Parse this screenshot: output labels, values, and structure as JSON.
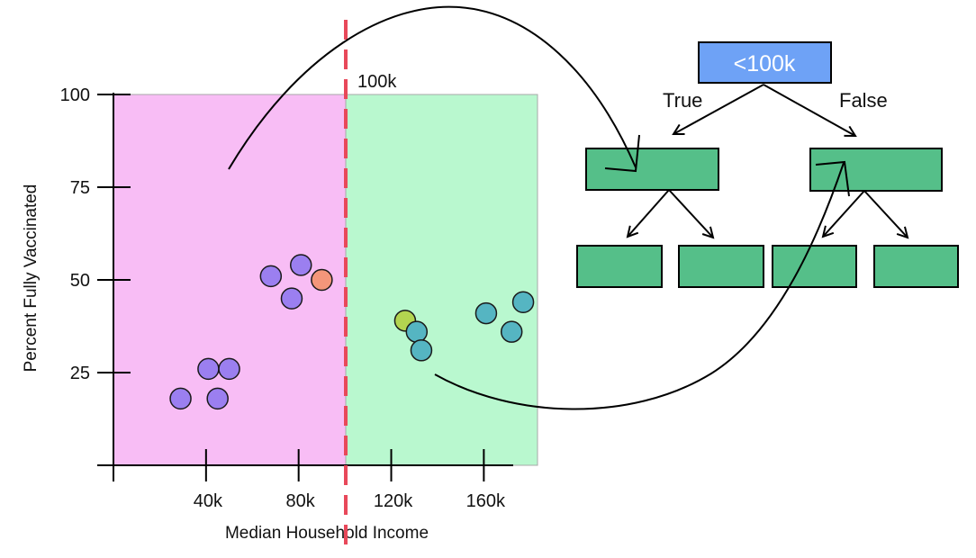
{
  "colors": {
    "left_region": "#f8bdf5",
    "right_region": "#b9f8cf",
    "split_line": "#e8485a",
    "root_node": "#6ea2f6",
    "tree_node": "#55bf89",
    "point_purple": "#9b7ff0",
    "point_orange": "#f4967a",
    "point_lime": "#b3d450",
    "point_teal": "#55b5c2"
  },
  "scatter": {
    "xlabel": "Median Household Income",
    "ylabel": "Percent Fully Vaccinated",
    "x_ticks": [
      {
        "value": 40000,
        "label": "40k"
      },
      {
        "value": 80000,
        "label": "80k"
      },
      {
        "value": 120000,
        "label": "120k"
      },
      {
        "value": 160000,
        "label": "160k"
      }
    ],
    "y_ticks": [
      {
        "value": 25,
        "label": "25"
      },
      {
        "value": 50,
        "label": "50"
      },
      {
        "value": 75,
        "label": "75"
      },
      {
        "value": 100,
        "label": "100"
      }
    ],
    "split": {
      "value": 100000,
      "label": "100k"
    },
    "points": [
      {
        "x": 29000,
        "y": 18,
        "color": "point_purple"
      },
      {
        "x": 45000,
        "y": 18,
        "color": "point_purple"
      },
      {
        "x": 41000,
        "y": 26,
        "color": "point_purple"
      },
      {
        "x": 50000,
        "y": 26,
        "color": "point_purple"
      },
      {
        "x": 68000,
        "y": 51,
        "color": "point_purple"
      },
      {
        "x": 77000,
        "y": 45,
        "color": "point_purple"
      },
      {
        "x": 81000,
        "y": 54,
        "color": "point_purple"
      },
      {
        "x": 90000,
        "y": 50,
        "color": "point_orange"
      },
      {
        "x": 126000,
        "y": 39,
        "color": "point_lime"
      },
      {
        "x": 131000,
        "y": 36,
        "color": "point_teal"
      },
      {
        "x": 133000,
        "y": 31,
        "color": "point_teal"
      },
      {
        "x": 161000,
        "y": 41,
        "color": "point_teal"
      },
      {
        "x": 172000,
        "y": 36,
        "color": "point_teal"
      },
      {
        "x": 177000,
        "y": 44,
        "color": "point_teal"
      }
    ]
  },
  "tree": {
    "root_label": "<100k",
    "true_label": "True",
    "false_label": "False"
  }
}
